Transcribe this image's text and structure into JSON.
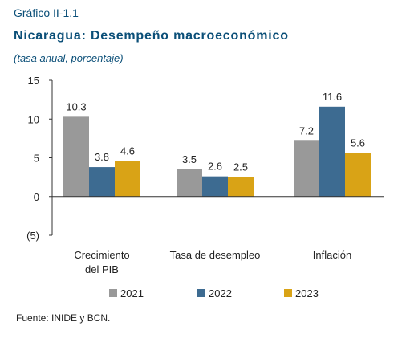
{
  "header": {
    "label": "Gráfico II-1.1",
    "title": "Nicaragua: Desempeño macroeconómico",
    "subtitle": "(tasa anual, porcentaje)"
  },
  "chart_data": {
    "type": "bar",
    "categories": [
      "Crecimiento\ndel PIB",
      "Tasa de desempleo",
      "Inflación"
    ],
    "series": [
      {
        "name": "2021",
        "values": [
          10.3,
          3.5,
          7.2
        ],
        "color": "#999999"
      },
      {
        "name": "2022",
        "values": [
          3.8,
          2.6,
          11.6
        ],
        "color": "#3d6b91"
      },
      {
        "name": "2023",
        "values": [
          4.6,
          2.5,
          5.6
        ],
        "color": "#d9a316"
      }
    ],
    "ylim": [
      -5,
      15
    ],
    "yticks": [
      15,
      10,
      5,
      0,
      -5
    ],
    "ytick_labels": [
      "15",
      "10",
      "5",
      "0",
      "(5)"
    ],
    "grid": false,
    "legend_position": "bottom",
    "data_labels": true
  },
  "footer": {
    "source": "Fuente: INIDE y BCN."
  }
}
